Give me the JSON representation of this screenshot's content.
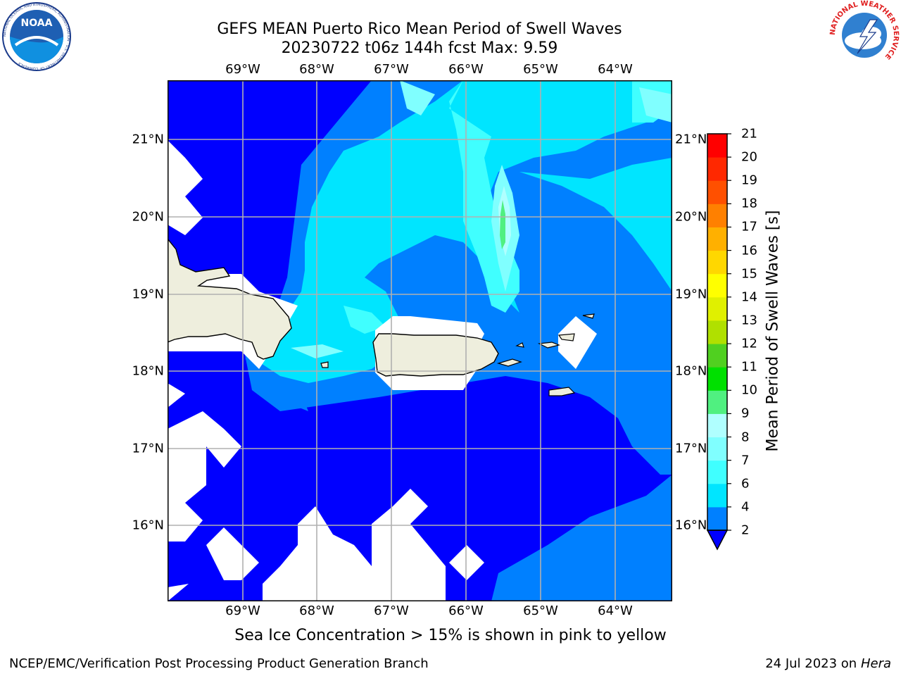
{
  "title": {
    "line1": "GEFS MEAN Puerto Rico Mean Period of Swell Waves",
    "line2": "20230722 t06z 144h fcst   Max: 9.59"
  },
  "map": {
    "lon_labels": [
      "69°W",
      "68°W",
      "67°W",
      "66°W",
      "65°W",
      "64°W"
    ],
    "lat_labels": [
      "21°N",
      "20°N",
      "19°N",
      "18°N",
      "17°N",
      "16°N"
    ],
    "colors": {
      "land": "#eeeedd",
      "no_data": "#ffffff",
      "grid": "#b0b0b0"
    }
  },
  "colorbar": {
    "label": "Mean Period of Swell Waves [s]",
    "ticks": [
      "21",
      "20",
      "19",
      "18",
      "17",
      "16",
      "15",
      "14",
      "13",
      "12",
      "11",
      "10",
      "9",
      "8",
      "7",
      "6",
      "4",
      "2"
    ],
    "levels": [
      2,
      4,
      6,
      7,
      8,
      9,
      10,
      11,
      12,
      13,
      14,
      15,
      16,
      17,
      18,
      19,
      20,
      21
    ],
    "colors": [
      "#0000ff",
      "#0080ff",
      "#00e5ff",
      "#40ffff",
      "#80ffff",
      "#b0ffff",
      "#50f080",
      "#00e000",
      "#50d020",
      "#b0e000",
      "#e0f000",
      "#ffff00",
      "#ffd700",
      "#ffb000",
      "#ff8000",
      "#ff5000",
      "#ff2800",
      "#ff0000"
    ],
    "under_color": "#0000ff"
  },
  "note": "Sea Ice Concentration > 15% is shown in pink to yellow",
  "footer": {
    "left": "NCEP/EMC/Verification Post Processing Product Generation Branch",
    "right_date": "24 Jul 2023 on ",
    "right_host": "Hera"
  },
  "logos": {
    "noaa_text": "NOAA",
    "noaa_ring": "NATIONAL OCEANIC AND ATMOSPHERIC ADMINISTRATION · U.S. DEPARTMENT OF COMMERCE",
    "nws_ring": "NATIONAL WEATHER SERVICE"
  }
}
